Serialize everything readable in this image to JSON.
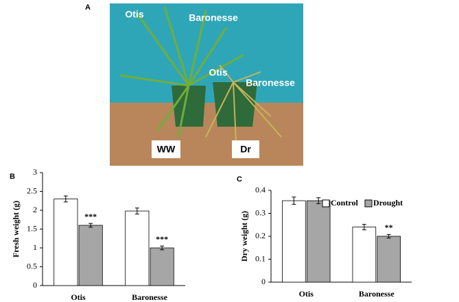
{
  "photo": {
    "panel_label": "A",
    "labels": [
      "Otis",
      "Baronesse",
      "Otis",
      "Baronesse",
      "WW",
      "Dr"
    ]
  },
  "chart_data": [
    {
      "type": "bar",
      "panel_label": "B",
      "y_label": "Fresh weight (g)",
      "categories": [
        "Otis",
        "Baronesse"
      ],
      "series": [
        {
          "name": "Control",
          "color": "#ffffff",
          "values": [
            2.3,
            1.98
          ],
          "errors": [
            0.08,
            0.08
          ]
        },
        {
          "name": "Drought",
          "color": "#a6a6a6",
          "values": [
            1.6,
            1.0
          ],
          "errors": [
            0.05,
            0.05
          ],
          "annotations": [
            "***",
            "***"
          ]
        }
      ],
      "ylim": [
        0,
        3
      ],
      "yticks": [
        0,
        0.5,
        1,
        1.5,
        2,
        2.5,
        3
      ],
      "legend": false
    },
    {
      "type": "bar",
      "panel_label": "C",
      "y_label": "Dry weight (g)",
      "categories": [
        "Otis",
        "Baronesse"
      ],
      "series": [
        {
          "name": "Control",
          "color": "#ffffff",
          "values": [
            0.355,
            0.24
          ],
          "errors": [
            0.016,
            0.012
          ]
        },
        {
          "name": "Drought",
          "color": "#a6a6a6",
          "values": [
            0.355,
            0.2
          ],
          "errors": [
            0.013,
            0.008
          ],
          "annotations": [
            null,
            "**"
          ]
        }
      ],
      "ylim": [
        0,
        0.4
      ],
      "yticks": [
        0,
        0.1,
        0.2,
        0.3,
        0.4
      ],
      "legend": "top-right"
    }
  ]
}
